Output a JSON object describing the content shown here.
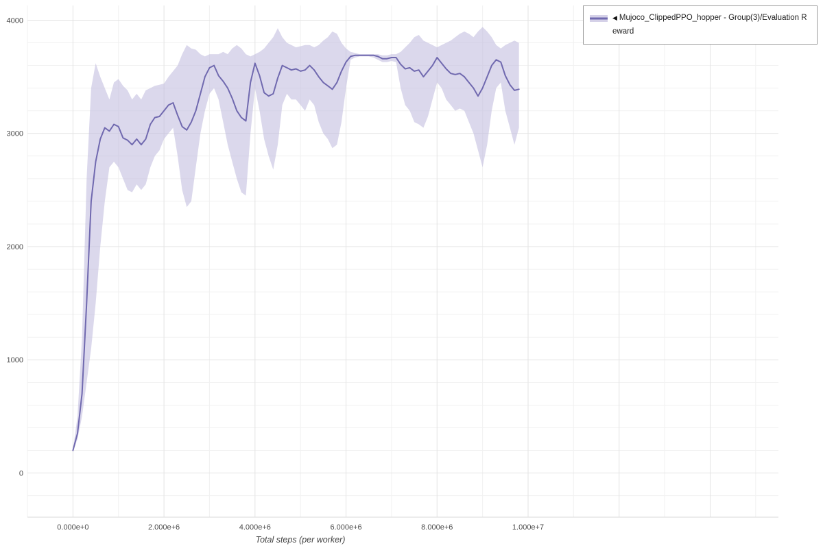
{
  "legend": {
    "toggle_icon": "◀",
    "label": "Mujoco_ClippedPPO_hopper - Group(3)/Evaluation Reward"
  },
  "axes": {
    "xlabel": "Total steps (per worker)"
  },
  "chart_data": {
    "type": "line",
    "title": "",
    "xlabel": "Total steps (per worker)",
    "ylabel": "",
    "legend_position": "top-right-outside",
    "grid": true,
    "x_range_visible": [
      -1000000,
      15500000
    ],
    "y_range_visible": [
      -390,
      4130
    ],
    "x_tick_values": [
      0,
      2000000,
      4000000,
      6000000,
      8000000,
      10000000
    ],
    "x_tick_labels": [
      "0.000e+0",
      "2.000e+6",
      "4.000e+6",
      "6.000e+6",
      "8.000e+6",
      "1.000e+7"
    ],
    "y_tick_values": [
      0,
      1000,
      2000,
      3000,
      4000
    ],
    "y_tick_labels": [
      "0",
      "1000",
      "2000",
      "3000",
      "4000"
    ],
    "style": {
      "line_color": "#7069af",
      "band_color": "#beb8dc",
      "band_opacity": 0.55,
      "grid_minor": "#f1f1f1",
      "grid_major": "#e3e3e3",
      "axis_line": "#d9d9d9",
      "tick_text": "#4a4a4a"
    },
    "series": [
      {
        "name": "Mujoco_ClippedPPO_hopper - Group(3)/Evaluation Reward",
        "x": [
          0,
          100000,
          200000,
          300000,
          400000,
          500000,
          600000,
          700000,
          800000,
          900000,
          1000000,
          1100000,
          1200000,
          1300000,
          1400000,
          1500000,
          1600000,
          1700000,
          1800000,
          1900000,
          2000000,
          2100000,
          2200000,
          2300000,
          2400000,
          2500000,
          2600000,
          2700000,
          2800000,
          2900000,
          3000000,
          3100000,
          3200000,
          3300000,
          3400000,
          3500000,
          3600000,
          3700000,
          3800000,
          3900000,
          4000000,
          4100000,
          4200000,
          4300000,
          4400000,
          4500000,
          4600000,
          4700000,
          4800000,
          4900000,
          5000000,
          5100000,
          5200000,
          5300000,
          5400000,
          5500000,
          5600000,
          5700000,
          5800000,
          5900000,
          6000000,
          6100000,
          6200000,
          6300000,
          6400000,
          6500000,
          6600000,
          6700000,
          6800000,
          6900000,
          7000000,
          7100000,
          7200000,
          7300000,
          7400000,
          7500000,
          7600000,
          7700000,
          7800000,
          7900000,
          8000000,
          8100000,
          8200000,
          8300000,
          8400000,
          8500000,
          8600000,
          8700000,
          8800000,
          8900000,
          9000000,
          9100000,
          9200000,
          9300000,
          9400000,
          9500000,
          9600000,
          9700000,
          9800000
        ],
        "mean": [
          200,
          350,
          700,
          1500,
          2400,
          2750,
          2950,
          3050,
          3020,
          3080,
          3060,
          2960,
          2940,
          2900,
          2950,
          2900,
          2950,
          3080,
          3140,
          3150,
          3200,
          3250,
          3270,
          3160,
          3060,
          3030,
          3100,
          3200,
          3350,
          3500,
          3580,
          3600,
          3510,
          3460,
          3400,
          3310,
          3200,
          3140,
          3110,
          3450,
          3620,
          3510,
          3360,
          3330,
          3350,
          3490,
          3600,
          3580,
          3560,
          3570,
          3550,
          3560,
          3600,
          3560,
          3500,
          3450,
          3420,
          3390,
          3450,
          3550,
          3630,
          3680,
          3690,
          3690,
          3690,
          3690,
          3690,
          3680,
          3660,
          3660,
          3670,
          3670,
          3610,
          3570,
          3580,
          3550,
          3560,
          3500,
          3550,
          3600,
          3670,
          3620,
          3570,
          3530,
          3520,
          3530,
          3500,
          3450,
          3400,
          3330,
          3400,
          3500,
          3600,
          3650,
          3630,
          3510,
          3430,
          3380,
          3390
        ],
        "lower": [
          190,
          300,
          500,
          800,
          1100,
          1500,
          2000,
          2400,
          2700,
          2750,
          2700,
          2600,
          2500,
          2480,
          2550,
          2500,
          2550,
          2700,
          2800,
          2850,
          2950,
          3000,
          3050,
          2800,
          2500,
          2350,
          2400,
          2700,
          3000,
          3200,
          3350,
          3400,
          3300,
          3100,
          2900,
          2750,
          2600,
          2480,
          2450,
          3000,
          3400,
          3200,
          2950,
          2800,
          2680,
          2900,
          3250,
          3350,
          3300,
          3300,
          3250,
          3200,
          3300,
          3250,
          3100,
          3000,
          2950,
          2870,
          2900,
          3100,
          3400,
          3650,
          3670,
          3680,
          3680,
          3680,
          3670,
          3650,
          3630,
          3630,
          3640,
          3630,
          3400,
          3250,
          3200,
          3100,
          3080,
          3050,
          3150,
          3300,
          3450,
          3400,
          3300,
          3250,
          3200,
          3220,
          3200,
          3100,
          3000,
          2850,
          2700,
          2900,
          3200,
          3400,
          3450,
          3200,
          3050,
          2900,
          3050
        ],
        "upper": [
          210,
          500,
          1200,
          2600,
          3400,
          3620,
          3500,
          3400,
          3300,
          3450,
          3480,
          3420,
          3380,
          3300,
          3350,
          3300,
          3380,
          3400,
          3420,
          3430,
          3440,
          3500,
          3550,
          3600,
          3700,
          3780,
          3750,
          3740,
          3700,
          3680,
          3700,
          3700,
          3700,
          3720,
          3700,
          3750,
          3780,
          3750,
          3700,
          3680,
          3700,
          3720,
          3750,
          3800,
          3850,
          3930,
          3850,
          3800,
          3780,
          3760,
          3770,
          3780,
          3780,
          3760,
          3780,
          3820,
          3850,
          3900,
          3880,
          3800,
          3750,
          3720,
          3710,
          3700,
          3700,
          3700,
          3700,
          3700,
          3690,
          3690,
          3700,
          3700,
          3720,
          3760,
          3800,
          3850,
          3870,
          3820,
          3800,
          3780,
          3760,
          3780,
          3800,
          3820,
          3850,
          3880,
          3900,
          3880,
          3850,
          3900,
          3940,
          3900,
          3850,
          3780,
          3750,
          3780,
          3800,
          3820,
          3800
        ]
      }
    ]
  }
}
